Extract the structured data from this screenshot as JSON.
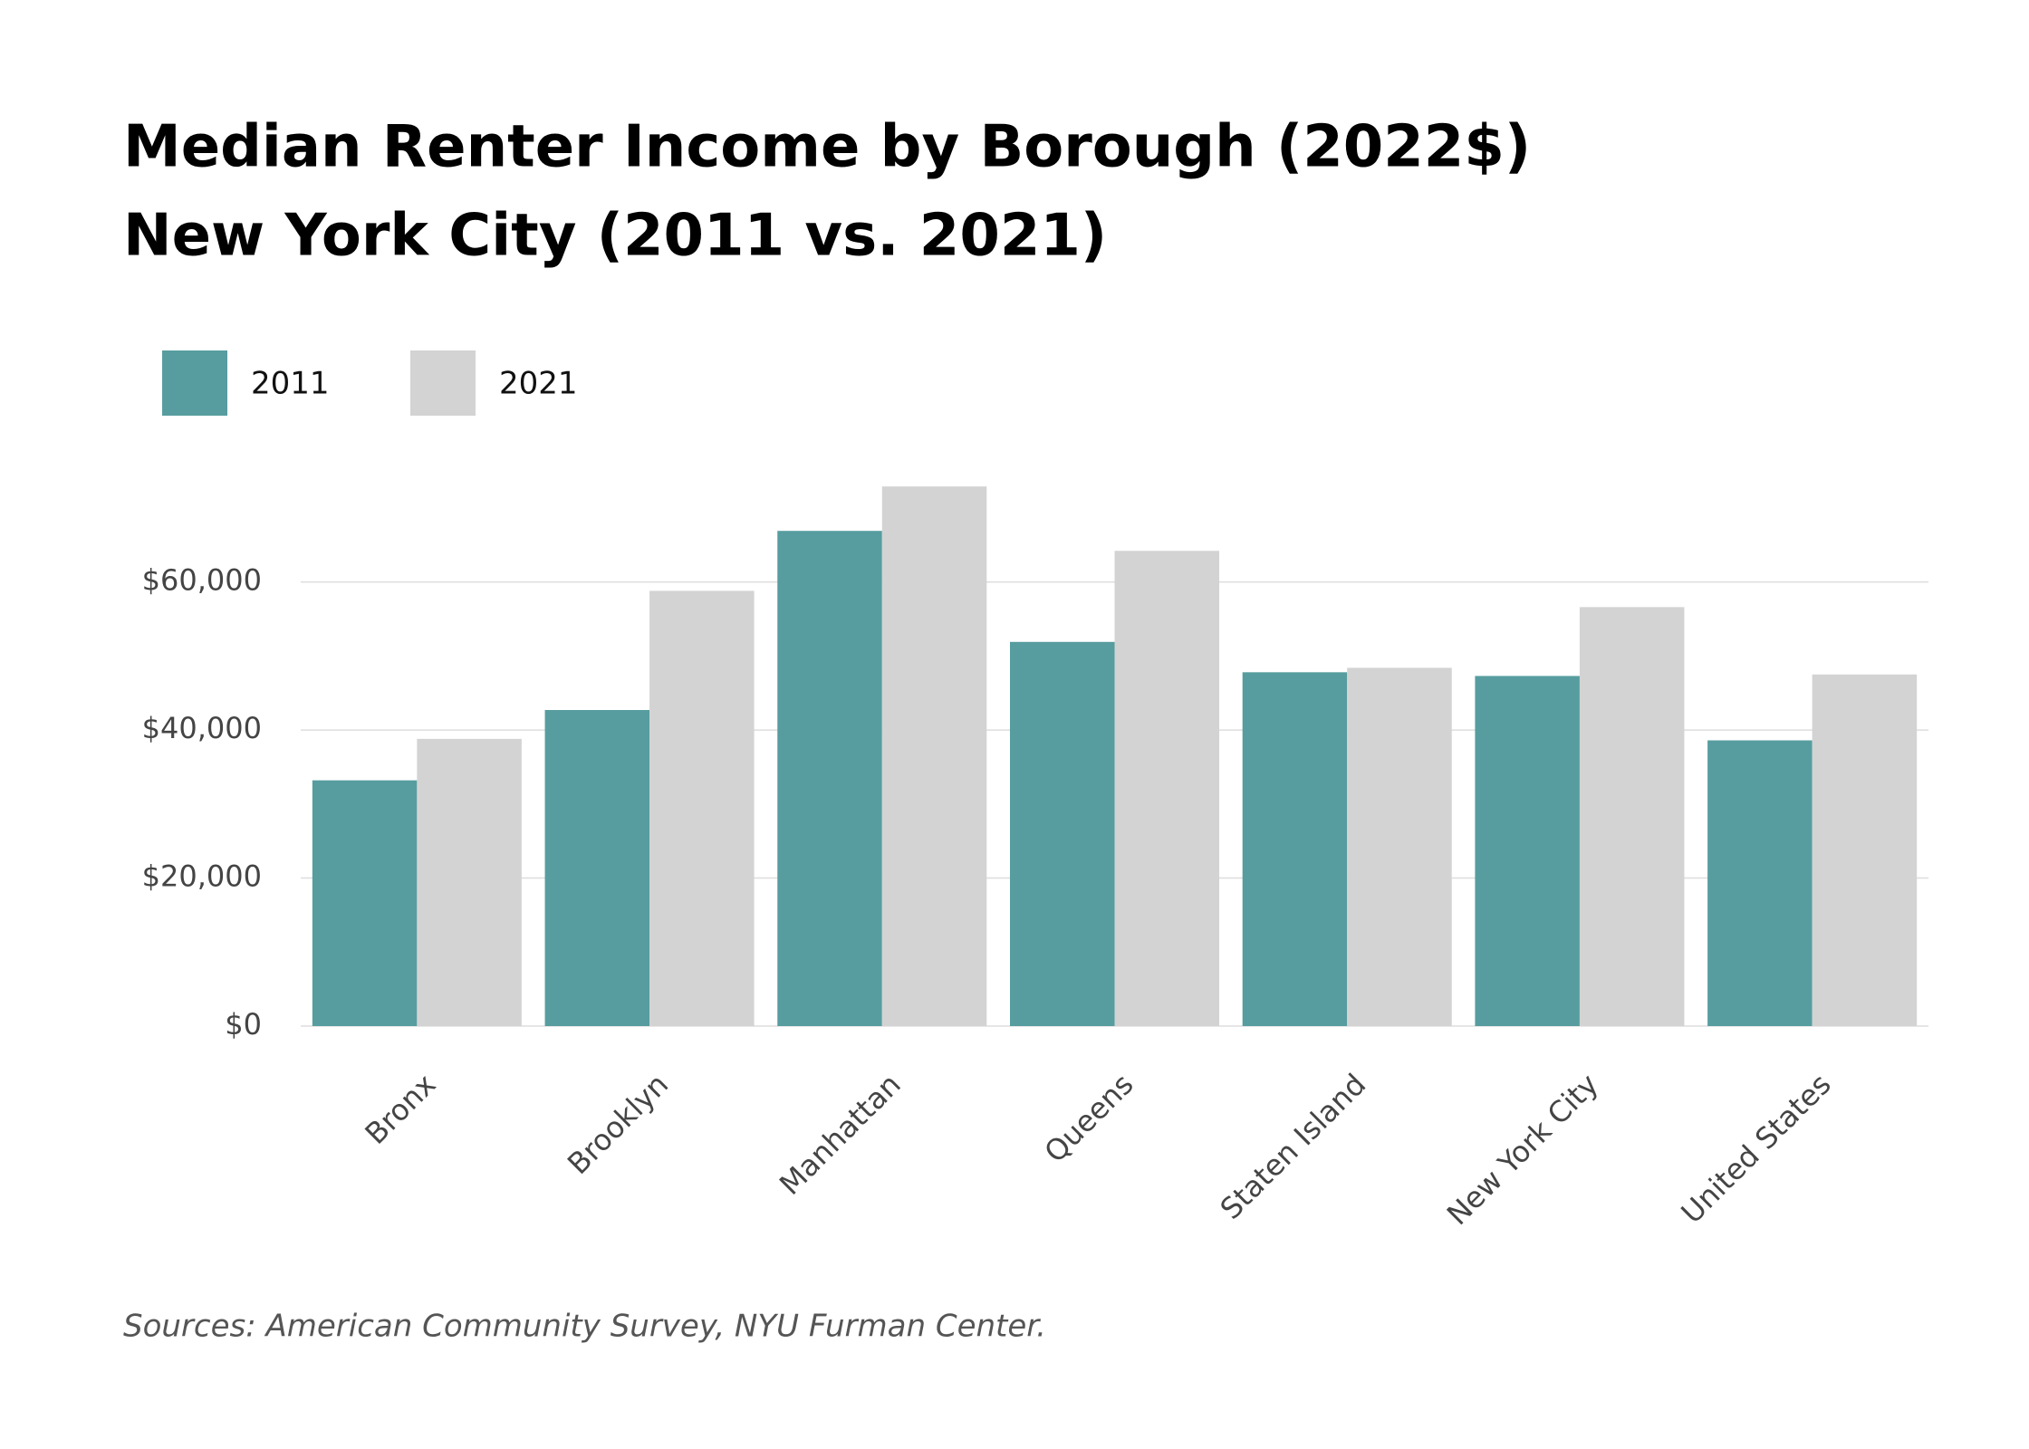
{
  "chart_data": {
    "type": "bar",
    "title": "Median Renter Income by Borough (2022$)",
    "subtitle": "New York City (2011 vs. 2021)",
    "categories": [
      "Bronx",
      "Brooklyn",
      "Manhattan",
      "Queens",
      "Staten Island",
      "New York City",
      "United States"
    ],
    "series": [
      {
        "name": "2011",
        "color": "#579d9f",
        "values": [
          33200,
          42700,
          66900,
          51900,
          47800,
          47300,
          38600
        ]
      },
      {
        "name": "2021",
        "color": "#d3d3d3",
        "values": [
          38800,
          58800,
          72900,
          64200,
          48400,
          56600,
          47500
        ]
      }
    ],
    "ylim": [
      0,
      75000
    ],
    "yticks": [
      {
        "value": 0,
        "label": "$0"
      },
      {
        "value": 20000,
        "label": "$20,000"
      },
      {
        "value": 40000,
        "label": "$40,000"
      },
      {
        "value": 60000,
        "label": "$60,000"
      }
    ],
    "grid": true,
    "source": "Sources: American Community Survey, NYU Furman Center."
  }
}
